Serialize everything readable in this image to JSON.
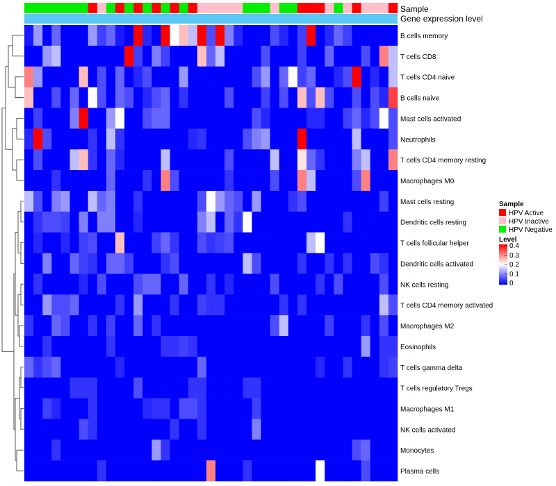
{
  "chart_data": {
    "type": "heatmap",
    "annotation_rows": [
      "Sample",
      "Gene expression level"
    ],
    "rows": [
      "B cells memory",
      "T cells CD8",
      "T cells CD4 naive",
      "B cells naive",
      "Mast cells activated",
      "Neutrophils",
      "T cells CD4 memory resting",
      "Macrophages M0",
      "Mast cells resting",
      "Dendritic cells resting",
      "T cells follicular helper",
      "Dendritic cells activated",
      "NK cells resting",
      "T cells CD4 memory activated",
      "Macrophages M2",
      "Eosinophils",
      "T cells gamma delta",
      "T cells regulatory  Tregs",
      "Macrophages M1",
      "NK cells activated",
      "Monocytes",
      "Plasma cells"
    ],
    "sample_groups": [
      "N",
      "N",
      "N",
      "N",
      "N",
      "N",
      "N",
      "A",
      "I",
      "N",
      "A",
      "N",
      "A",
      "N",
      "A",
      "N",
      "A",
      "N",
      "A",
      "I",
      "I",
      "I",
      "I",
      "I",
      "N",
      "N",
      "N",
      "I",
      "N",
      "N",
      "A",
      "A",
      "A",
      "I",
      "N",
      "I",
      "A",
      "I",
      "I",
      "I",
      "A"
    ],
    "values": [
      [
        0.02,
        0.12,
        0.0,
        0.08,
        0.0,
        0.0,
        0.0,
        0.12,
        0.05,
        0.08,
        0.02,
        0.0,
        0.4,
        0.03,
        0.0,
        0.4,
        0.2,
        0.25,
        0.15,
        0.4,
        0.06,
        0.4,
        0.1,
        0.03,
        0.0,
        0.0,
        0.0,
        0.06,
        0.03,
        0.0,
        0.05,
        0.4,
        0.0,
        0.03,
        0.08,
        0.05,
        0.0,
        0.0,
        0.0,
        0.0,
        0.0
      ],
      [
        0.0,
        0.0,
        0.12,
        0.15,
        0.0,
        0.0,
        0.0,
        0.0,
        0.0,
        0.0,
        0.0,
        0.4,
        0.05,
        0.0,
        0.1,
        0.05,
        0.0,
        0.0,
        0.0,
        0.25,
        0.08,
        0.15,
        0.0,
        0.0,
        0.0,
        0.0,
        0.06,
        0.0,
        0.0,
        0.0,
        0.05,
        0.0,
        0.0,
        0.08,
        0.0,
        0.0,
        0.0,
        0.06,
        0.0,
        0.3,
        0.15
      ],
      [
        0.3,
        0.12,
        0.0,
        0.0,
        0.0,
        0.0,
        0.25,
        0.0,
        0.06,
        0.0,
        0.08,
        0.0,
        0.03,
        0.06,
        0.0,
        0.0,
        0.0,
        0.12,
        0.0,
        0.0,
        0.0,
        0.0,
        0.0,
        0.0,
        0.0,
        0.06,
        0.12,
        0.0,
        0.08,
        0.2,
        0.05,
        0.08,
        0.0,
        0.0,
        0.03,
        0.06,
        0.4,
        0.0,
        0.03,
        0.0,
        0.15
      ],
      [
        0.25,
        0.0,
        0.0,
        0.06,
        0.0,
        0.08,
        0.0,
        0.2,
        0.06,
        0.0,
        0.08,
        0.06,
        0.0,
        0.03,
        0.06,
        0.08,
        0.0,
        0.04,
        0.0,
        0.0,
        0.0,
        0.0,
        0.06,
        0.0,
        0.0,
        0.0,
        0.05,
        0.0,
        0.06,
        0.0,
        0.25,
        0.06,
        0.25,
        0.06,
        0.0,
        0.0,
        0.06,
        0.0,
        0.06,
        0.03,
        0.35
      ],
      [
        0.0,
        0.05,
        0.0,
        0.0,
        0.0,
        0.1,
        0.4,
        0.0,
        0.0,
        0.12,
        0.2,
        0.0,
        0.0,
        0.06,
        0.08,
        0.08,
        0.0,
        0.0,
        0.0,
        0.0,
        0.0,
        0.0,
        0.0,
        0.0,
        0.0,
        0.06,
        0.03,
        0.0,
        0.0,
        0.0,
        0.0,
        0.03,
        0.03,
        0.0,
        0.0,
        0.05,
        0.08,
        0.03,
        0.06,
        0.2,
        0.06
      ],
      [
        0.03,
        0.4,
        0.06,
        0.0,
        0.0,
        0.0,
        0.0,
        0.04,
        0.0,
        0.15,
        0.04,
        0.0,
        0.0,
        0.0,
        0.0,
        0.0,
        0.0,
        0.0,
        0.03,
        0.04,
        0.0,
        0.0,
        0.0,
        0.0,
        0.06,
        0.1,
        0.12,
        0.0,
        0.0,
        0.0,
        0.4,
        0.0,
        0.0,
        0.0,
        0.0,
        0.0,
        0.15,
        0.0,
        0.0,
        0.0,
        0.06
      ],
      [
        0.0,
        0.06,
        0.0,
        0.0,
        0.0,
        0.15,
        0.25,
        0.04,
        0.0,
        0.08,
        0.03,
        0.0,
        0.0,
        0.0,
        0.0,
        0.15,
        0.0,
        0.0,
        0.0,
        0.0,
        0.0,
        0.0,
        0.06,
        0.0,
        0.0,
        0.0,
        0.0,
        0.15,
        0.0,
        0.0,
        0.22,
        0.08,
        0.04,
        0.0,
        0.0,
        0.0,
        0.1,
        0.15,
        0.0,
        0.0,
        0.3
      ],
      [
        0.0,
        0.0,
        0.0,
        0.04,
        0.0,
        0.0,
        0.0,
        0.0,
        0.0,
        0.08,
        0.0,
        0.0,
        0.0,
        0.04,
        0.0,
        0.3,
        0.06,
        0.0,
        0.0,
        0.0,
        0.0,
        0.0,
        0.04,
        0.0,
        0.0,
        0.0,
        0.0,
        0.06,
        0.0,
        0.0,
        0.3,
        0.15,
        0.0,
        0.0,
        0.0,
        0.0,
        0.06,
        0.3,
        0.0,
        0.0,
        0.0
      ],
      [
        0.15,
        0.06,
        0.0,
        0.1,
        0.12,
        0.0,
        0.0,
        0.15,
        0.08,
        0.1,
        0.0,
        0.0,
        0.04,
        0.0,
        0.0,
        0.0,
        0.0,
        0.0,
        0.0,
        0.06,
        0.2,
        0.12,
        0.08,
        0.06,
        0.0,
        0.12,
        0.0,
        0.0,
        0.0,
        0.04,
        0.06,
        0.0,
        0.0,
        0.0,
        0.0,
        0.0,
        0.0,
        0.0,
        0.0,
        0.05,
        0.0
      ],
      [
        0.0,
        0.04,
        0.06,
        0.06,
        0.05,
        0.0,
        0.1,
        0.0,
        0.1,
        0.1,
        0.0,
        0.0,
        0.03,
        0.0,
        0.0,
        0.0,
        0.0,
        0.0,
        0.0,
        0.1,
        0.15,
        0.0,
        0.08,
        0.04,
        0.2,
        0.0,
        0.0,
        0.0,
        0.0,
        0.0,
        0.0,
        0.0,
        0.0,
        0.0,
        0.0,
        0.04,
        0.0,
        0.0,
        0.0,
        0.0,
        0.0
      ],
      [
        0.0,
        0.03,
        0.0,
        0.0,
        0.03,
        0.0,
        0.05,
        0.06,
        0.0,
        0.0,
        0.25,
        0.0,
        0.0,
        0.0,
        0.05,
        0.08,
        0.04,
        0.0,
        0.0,
        0.06,
        0.04,
        0.05,
        0.06,
        0.0,
        0.0,
        0.0,
        0.0,
        0.0,
        0.0,
        0.0,
        0.0,
        0.15,
        0.2,
        0.0,
        0.0,
        0.0,
        0.0,
        0.0,
        0.0,
        0.0,
        0.0
      ],
      [
        0.0,
        0.0,
        0.1,
        0.0,
        0.0,
        0.08,
        0.05,
        0.04,
        0.0,
        0.08,
        0.08,
        0.05,
        0.0,
        0.0,
        0.0,
        0.04,
        0.06,
        0.0,
        0.0,
        0.0,
        0.0,
        0.0,
        0.0,
        0.0,
        0.15,
        0.06,
        0.0,
        0.0,
        0.0,
        0.0,
        0.04,
        0.0,
        0.0,
        0.04,
        0.0,
        0.04,
        0.0,
        0.0,
        0.06,
        0.04,
        0.0
      ],
      [
        0.0,
        0.04,
        0.0,
        0.0,
        0.0,
        0.0,
        0.03,
        0.0,
        0.06,
        0.0,
        0.0,
        0.0,
        0.06,
        0.08,
        0.08,
        0.0,
        0.0,
        0.08,
        0.0,
        0.0,
        0.04,
        0.0,
        0.03,
        0.0,
        0.0,
        0.0,
        0.0,
        0.06,
        0.0,
        0.0,
        0.0,
        0.0,
        0.04,
        0.0,
        0.06,
        0.0,
        0.0,
        0.0,
        0.0,
        0.06,
        0.0
      ],
      [
        0.0,
        0.0,
        0.12,
        0.06,
        0.06,
        0.08,
        0.0,
        0.0,
        0.0,
        0.0,
        0.04,
        0.0,
        0.12,
        0.0,
        0.0,
        0.0,
        0.04,
        0.0,
        0.0,
        0.05,
        0.04,
        0.04,
        0.0,
        0.0,
        0.0,
        0.0,
        0.0,
        0.0,
        0.04,
        0.0,
        0.04,
        0.0,
        0.0,
        0.0,
        0.0,
        0.0,
        0.0,
        0.0,
        0.0,
        0.15,
        0.06
      ],
      [
        0.04,
        0.0,
        0.0,
        0.08,
        0.06,
        0.0,
        0.0,
        0.04,
        0.0,
        0.05,
        0.0,
        0.0,
        0.08,
        0.0,
        0.04,
        0.0,
        0.0,
        0.0,
        0.0,
        0.0,
        0.0,
        0.0,
        0.0,
        0.0,
        0.0,
        0.0,
        0.0,
        0.06,
        0.15,
        0.0,
        0.0,
        0.0,
        0.0,
        0.05,
        0.0,
        0.0,
        0.0,
        0.04,
        0.0,
        0.06,
        0.0
      ],
      [
        0.0,
        0.0,
        0.04,
        0.0,
        0.0,
        0.0,
        0.0,
        0.0,
        0.0,
        0.04,
        0.0,
        0.0,
        0.0,
        0.0,
        0.0,
        0.04,
        0.04,
        0.05,
        0.04,
        0.0,
        0.0,
        0.0,
        0.0,
        0.0,
        0.0,
        0.0,
        0.0,
        0.0,
        0.0,
        0.0,
        0.0,
        0.0,
        0.0,
        0.0,
        0.0,
        0.0,
        0.0,
        0.12,
        0.0,
        0.04,
        0.04
      ],
      [
        0.08,
        0.04,
        0.06,
        0.08,
        0.0,
        0.0,
        0.0,
        0.0,
        0.0,
        0.0,
        0.03,
        0.0,
        0.0,
        0.0,
        0.0,
        0.0,
        0.0,
        0.0,
        0.0,
        0.08,
        0.0,
        0.0,
        0.0,
        0.0,
        0.0,
        0.0,
        0.0,
        0.0,
        0.0,
        0.0,
        0.0,
        0.0,
        0.03,
        0.0,
        0.0,
        0.04,
        0.0,
        0.0,
        0.0,
        0.04,
        0.05
      ],
      [
        0.0,
        0.0,
        0.0,
        0.0,
        0.0,
        0.04,
        0.04,
        0.04,
        0.0,
        0.0,
        0.0,
        0.0,
        0.06,
        0.0,
        0.0,
        0.0,
        0.0,
        0.0,
        0.04,
        0.04,
        0.0,
        0.0,
        0.0,
        0.0,
        0.04,
        0.04,
        0.0,
        0.0,
        0.0,
        0.0,
        0.0,
        0.0,
        0.0,
        0.0,
        0.0,
        0.0,
        0.0,
        0.0,
        0.0,
        0.0,
        0.0
      ],
      [
        0.0,
        0.0,
        0.05,
        0.03,
        0.0,
        0.0,
        0.0,
        0.04,
        0.0,
        0.0,
        0.0,
        0.0,
        0.0,
        0.03,
        0.04,
        0.04,
        0.0,
        0.06,
        0.06,
        0.04,
        0.0,
        0.0,
        0.0,
        0.0,
        0.0,
        0.05,
        0.0,
        0.0,
        0.0,
        0.0,
        0.0,
        0.0,
        0.0,
        0.0,
        0.0,
        0.0,
        0.0,
        0.0,
        0.0,
        0.0,
        0.0
      ],
      [
        0.0,
        0.0,
        0.0,
        0.0,
        0.0,
        0.0,
        0.06,
        0.04,
        0.0,
        0.0,
        0.0,
        0.0,
        0.0,
        0.0,
        0.0,
        0.0,
        0.04,
        0.0,
        0.0,
        0.04,
        0.0,
        0.0,
        0.0,
        0.0,
        0.0,
        0.1,
        0.0,
        0.0,
        0.0,
        0.0,
        0.0,
        0.0,
        0.0,
        0.0,
        0.0,
        0.0,
        0.0,
        0.0,
        0.0,
        0.0,
        0.0
      ],
      [
        0.0,
        0.0,
        0.0,
        0.04,
        0.0,
        0.0,
        0.0,
        0.0,
        0.0,
        0.0,
        0.0,
        0.0,
        0.0,
        0.0,
        0.12,
        0.04,
        0.0,
        0.0,
        0.0,
        0.0,
        0.0,
        0.0,
        0.0,
        0.0,
        0.0,
        0.0,
        0.0,
        0.0,
        0.0,
        0.0,
        0.0,
        0.0,
        0.0,
        0.0,
        0.0,
        0.0,
        0.06,
        0.08,
        0.0,
        0.0,
        0.0
      ],
      [
        0.0,
        0.0,
        0.0,
        0.0,
        0.0,
        0.0,
        0.0,
        0.0,
        0.04,
        0.0,
        0.0,
        0.0,
        0.0,
        0.0,
        0.0,
        0.0,
        0.0,
        0.0,
        0.0,
        0.0,
        0.3,
        0.0,
        0.0,
        0.0,
        0.04,
        0.0,
        0.0,
        0.0,
        0.0,
        0.0,
        0.0,
        0.0,
        0.2,
        0.0,
        0.0,
        0.0,
        0.0,
        0.06,
        0.0,
        0.0,
        0.0
      ]
    ],
    "legend_sample": {
      "title": "Sample",
      "items": [
        {
          "key": "A",
          "label": "HPV Active",
          "color": "#ff0000"
        },
        {
          "key": "I",
          "label": "HPV Inactive",
          "color": "#ffc0cb"
        },
        {
          "key": "N",
          "label": "HPV Negative",
          "color": "#00ee00"
        }
      ]
    },
    "legend_level": {
      "title": "Level",
      "ticks": [
        "0.4",
        "0.3",
        "0.2",
        "0.1",
        "0"
      ],
      "range": [
        0,
        0.4
      ]
    },
    "colors": {
      "low": "#0000ff",
      "mid": "#ffffff",
      "high": "#ff0000",
      "expression_bar": "#5bc8f5"
    }
  }
}
